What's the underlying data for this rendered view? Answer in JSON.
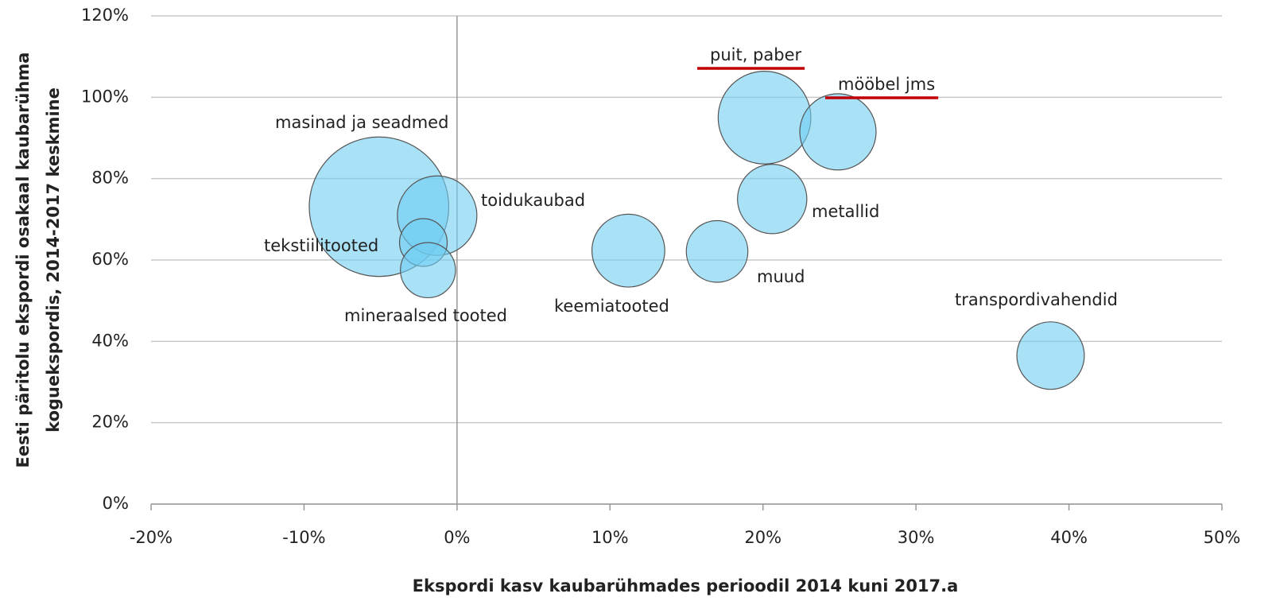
{
  "chart_data": {
    "type": "bubble",
    "x_label": "Ekspordi kasv kaubarühmades perioodil 2014 kuni 2017.a",
    "y_label": [
      "Eesti päritolu ekspordi osakaal kaubarühma",
      "koguekspordis, 2014-2017 keskmine"
    ],
    "labels": [
      "masinad ja seadmed",
      "toidukaubad",
      "tekstiilitooted",
      "mineraalsed tooted",
      "keemiatooted",
      "muud",
      "metallid",
      "puit, paber",
      "mööbel jms",
      "transpordivahendid"
    ],
    "x": [
      -5.1,
      -1.3,
      -2.2,
      -1.9,
      11.2,
      17.0,
      20.6,
      20.1,
      24.9,
      38.8
    ],
    "y": [
      73.1,
      70.9,
      64.3,
      57.5,
      62.3,
      62.1,
      75.0,
      95.0,
      91.5,
      36.5
    ],
    "sizes": [
      77,
      25,
      9,
      12,
      21,
      15,
      19,
      34,
      23,
      18
    ],
    "color": "#6fcdf2",
    "highlighted": [
      7,
      8
    ],
    "highlight_color": "#c00000",
    "xlim": [
      -20,
      50
    ],
    "xticks": [
      {
        "value": -20,
        "label": "-20%"
      },
      {
        "value": -10,
        "label": "-10%"
      },
      {
        "value": 0,
        "label": "0%"
      },
      {
        "value": 10,
        "label": "10%"
      },
      {
        "value": 20,
        "label": "20%"
      },
      {
        "value": 30,
        "label": "30%"
      },
      {
        "value": 40,
        "label": "40%"
      },
      {
        "value": 50,
        "label": "50%"
      }
    ],
    "ylim": [
      0,
      120
    ],
    "yticks": [
      {
        "value": 0,
        "label": "0%"
      },
      {
        "value": 20,
        "label": "20%"
      },
      {
        "value": 40,
        "label": "40%"
      },
      {
        "value": 60,
        "label": "60%"
      },
      {
        "value": 80,
        "label": "80%"
      },
      {
        "value": 100,
        "label": "100%"
      },
      {
        "value": 120,
        "label": "120%"
      }
    ],
    "grid": true
  }
}
